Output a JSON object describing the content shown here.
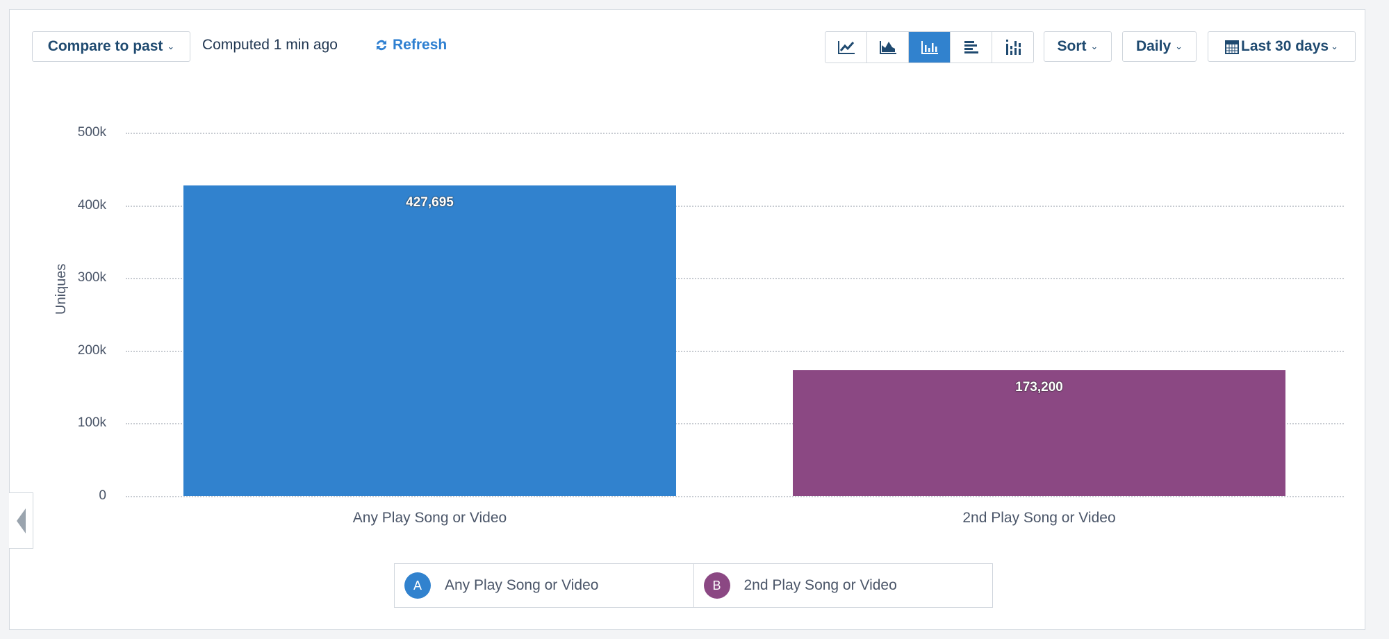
{
  "toolbar": {
    "compare_label": "Compare to past",
    "computed": "Computed 1 min ago",
    "refresh": "Refresh",
    "sort": "Sort",
    "interval": "Daily",
    "range": "Last 30 days",
    "chart_types": [
      "line-chart-icon",
      "area-chart-icon",
      "bar-chart-icon",
      "horizontal-bar-icon",
      "stacked-bar-icon"
    ],
    "active_chart_type": "bar-chart-icon"
  },
  "chart_data": {
    "type": "bar",
    "categories": [
      "Any Play Song or Video",
      "2nd Play Song or Video"
    ],
    "values": [
      427695,
      173200
    ],
    "value_labels": [
      "427,695",
      "173,200"
    ],
    "ylabel": "Uniques",
    "xlabel": "",
    "ylim": [
      0,
      500000
    ],
    "yticks": [
      "0",
      "100k",
      "200k",
      "300k",
      "400k",
      "500k"
    ],
    "grid": true,
    "colors": [
      "#3182ce",
      "#8b4883"
    ],
    "legend_position": "bottom",
    "legend": [
      {
        "badge": "A",
        "label": "Any Play Song or Video"
      },
      {
        "badge": "B",
        "label": "2nd Play Song or Video"
      }
    ]
  }
}
